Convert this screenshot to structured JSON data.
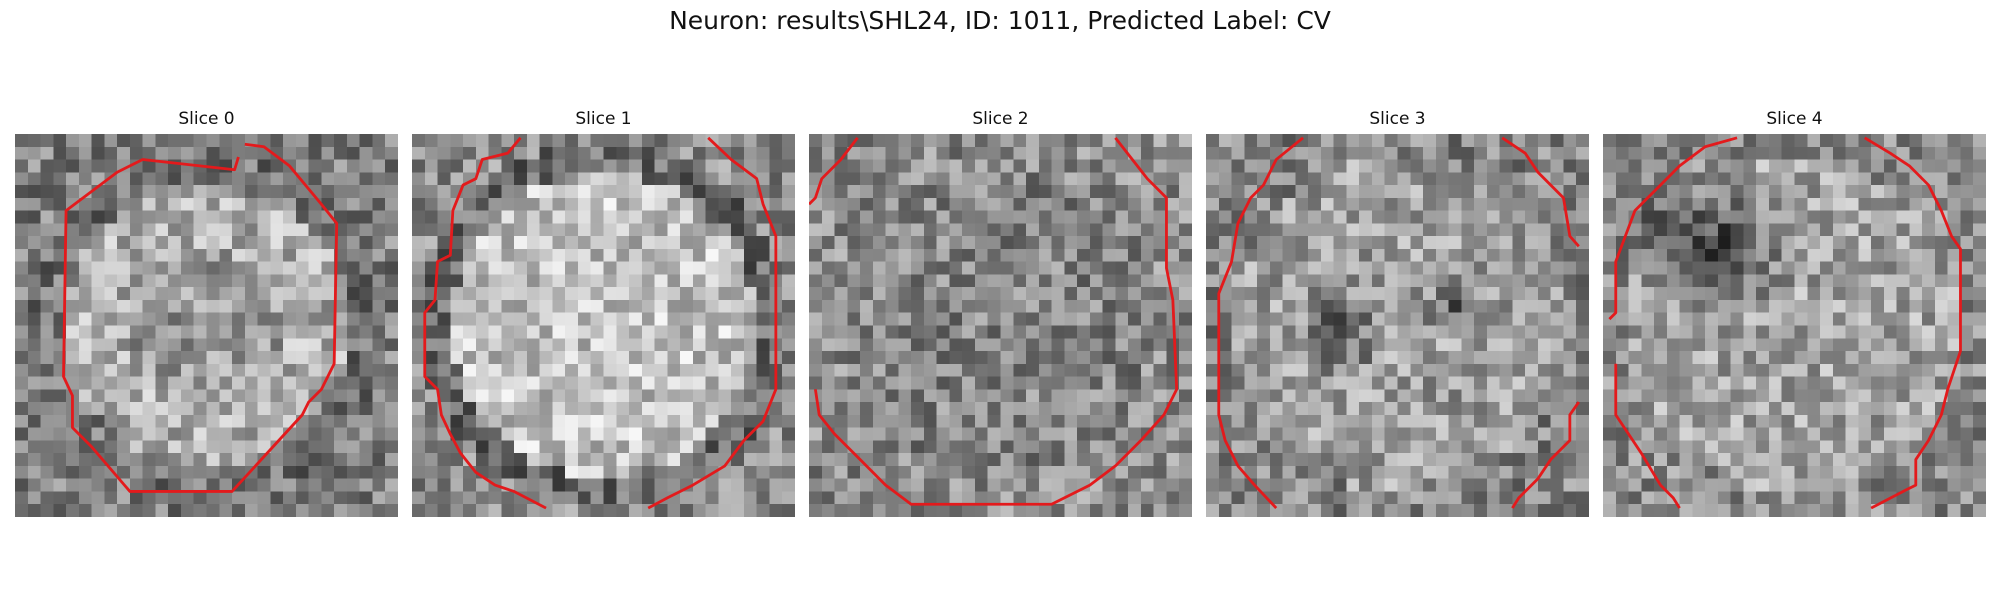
{
  "figure": {
    "title": "Neuron: results\\SHL24, ID: 1011, Predicted Label: CV"
  },
  "panels": [
    {
      "title": "Slice 0",
      "seed": 11,
      "pattern": "bright-disk"
    },
    {
      "title": "Slice 1",
      "seed": 23,
      "pattern": "bright-disk-strong"
    },
    {
      "title": "Slice 2",
      "seed": 37,
      "pattern": "uniform-noise"
    },
    {
      "title": "Slice 3",
      "seed": 41,
      "pattern": "dark-spots"
    },
    {
      "title": "Slice 4",
      "seed": 53,
      "pattern": "dark-upper-left"
    }
  ],
  "colors": {
    "contour": "#e31a1c"
  }
}
